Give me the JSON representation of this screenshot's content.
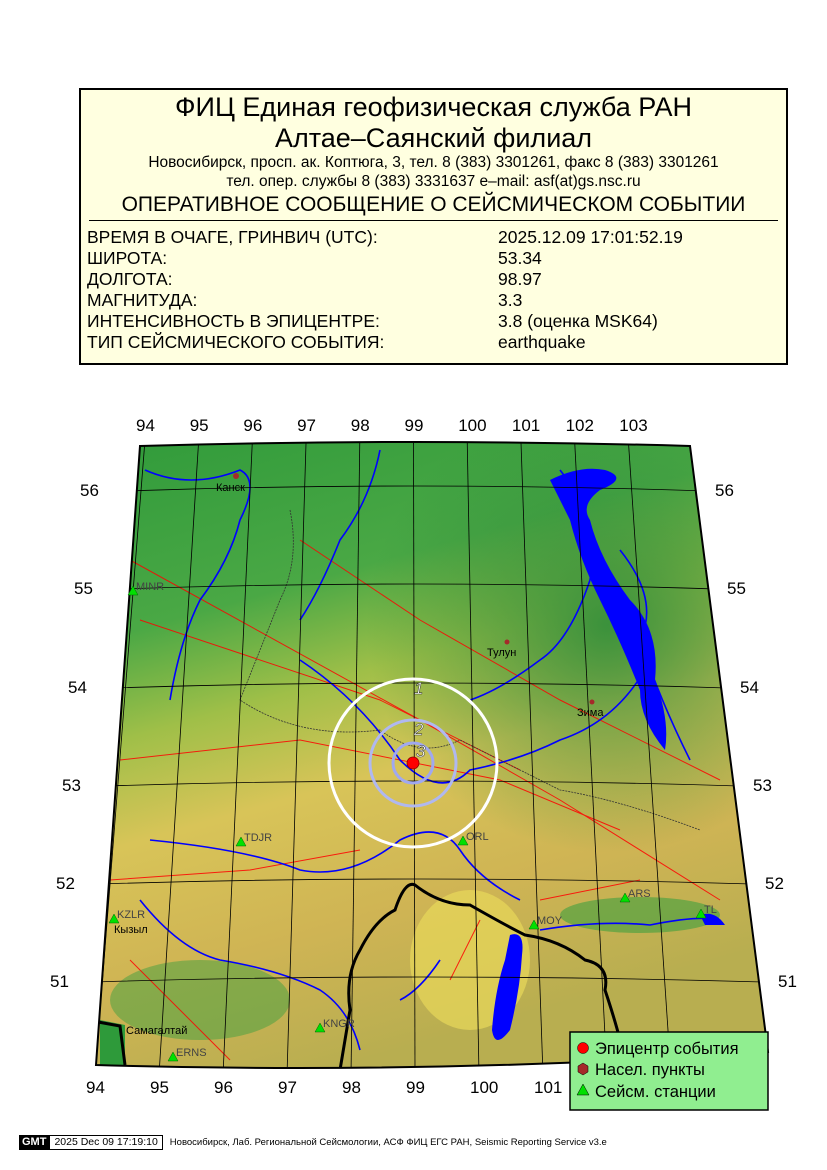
{
  "header": {
    "org": "ФИЦ Единая геофизическая служба РАН",
    "branch": "Алтае–Саянский филиал",
    "address": "Новосибирск, просп. ак. Коптюга, 3, тел. 8 (383) 3301261, факс 8 (383) 3301261",
    "contacts": "тел. опер. службы 8 (383) 3331637  e–mail: asf(at)gs.nsc.ru",
    "title": "ОПЕРАТИВНОЕ СООБЩЕНИЕ О СЕЙСМИЧЕСКОМ СОБЫТИИ"
  },
  "event": [
    {
      "label": "ВРЕМЯ В ОЧАГЕ, ГРИНВИЧ (UTC):",
      "value": "2025.12.09 17:01:52.19"
    },
    {
      "label": "ШИРОТА:",
      "value": "53.34"
    },
    {
      "label": "ДОЛГОТА:",
      "value": "98.97"
    },
    {
      "label": "МАГНИТУДА:",
      "value": "3.3"
    },
    {
      "label": "ИНТЕНСИВНОСТЬ В ЭПИЦЕНТРЕ:",
      "value": "3.8 (оценка MSK64)"
    },
    {
      "label": "ТИП СЕЙСМИЧЕСКОГО СОБЫТИЯ:",
      "value": "earthquake"
    }
  ],
  "map": {
    "lon_top": [
      "94",
      "95",
      "96",
      "97",
      "98",
      "99",
      "100",
      "101",
      "102",
      "103"
    ],
    "lon_bottom": [
      "94",
      "95",
      "96",
      "97",
      "98",
      "99",
      "100",
      "101"
    ],
    "lat_left": [
      "56",
      "55",
      "54",
      "53",
      "52",
      "51"
    ],
    "lat_right": [
      "56",
      "55",
      "54",
      "53",
      "52",
      "51"
    ],
    "isoseismal_labels": [
      "1",
      "2",
      "3"
    ],
    "cities": [
      "Канск",
      "Тулун",
      "Зима",
      "Кызыл",
      "Самагалтай"
    ],
    "stations": [
      "MINR",
      "TDJR",
      "ORL",
      "KZLR",
      "ARS",
      "MOY",
      "TL",
      "KNGR",
      "ERNS"
    ],
    "colors": {
      "epicenter": "#ff0000",
      "city": "#a52a2a",
      "station": "#00e000",
      "river": "#0000ff",
      "fault": "#ff0000",
      "legend_bg": "#90ee90"
    }
  },
  "legend": {
    "epicenter": "Эпицентр события",
    "cities": "Насел. пункты",
    "stations": "Сейсм. станции"
  },
  "footer": {
    "logo": "GMT",
    "timestamp": "2025 Dec 09 17:19:10",
    "source": "Новосибирск, Лаб. Региональной Сейсмологии, АСФ ФИЦ ЕГС РАН, Seismic Reporting Service v3.e"
  }
}
